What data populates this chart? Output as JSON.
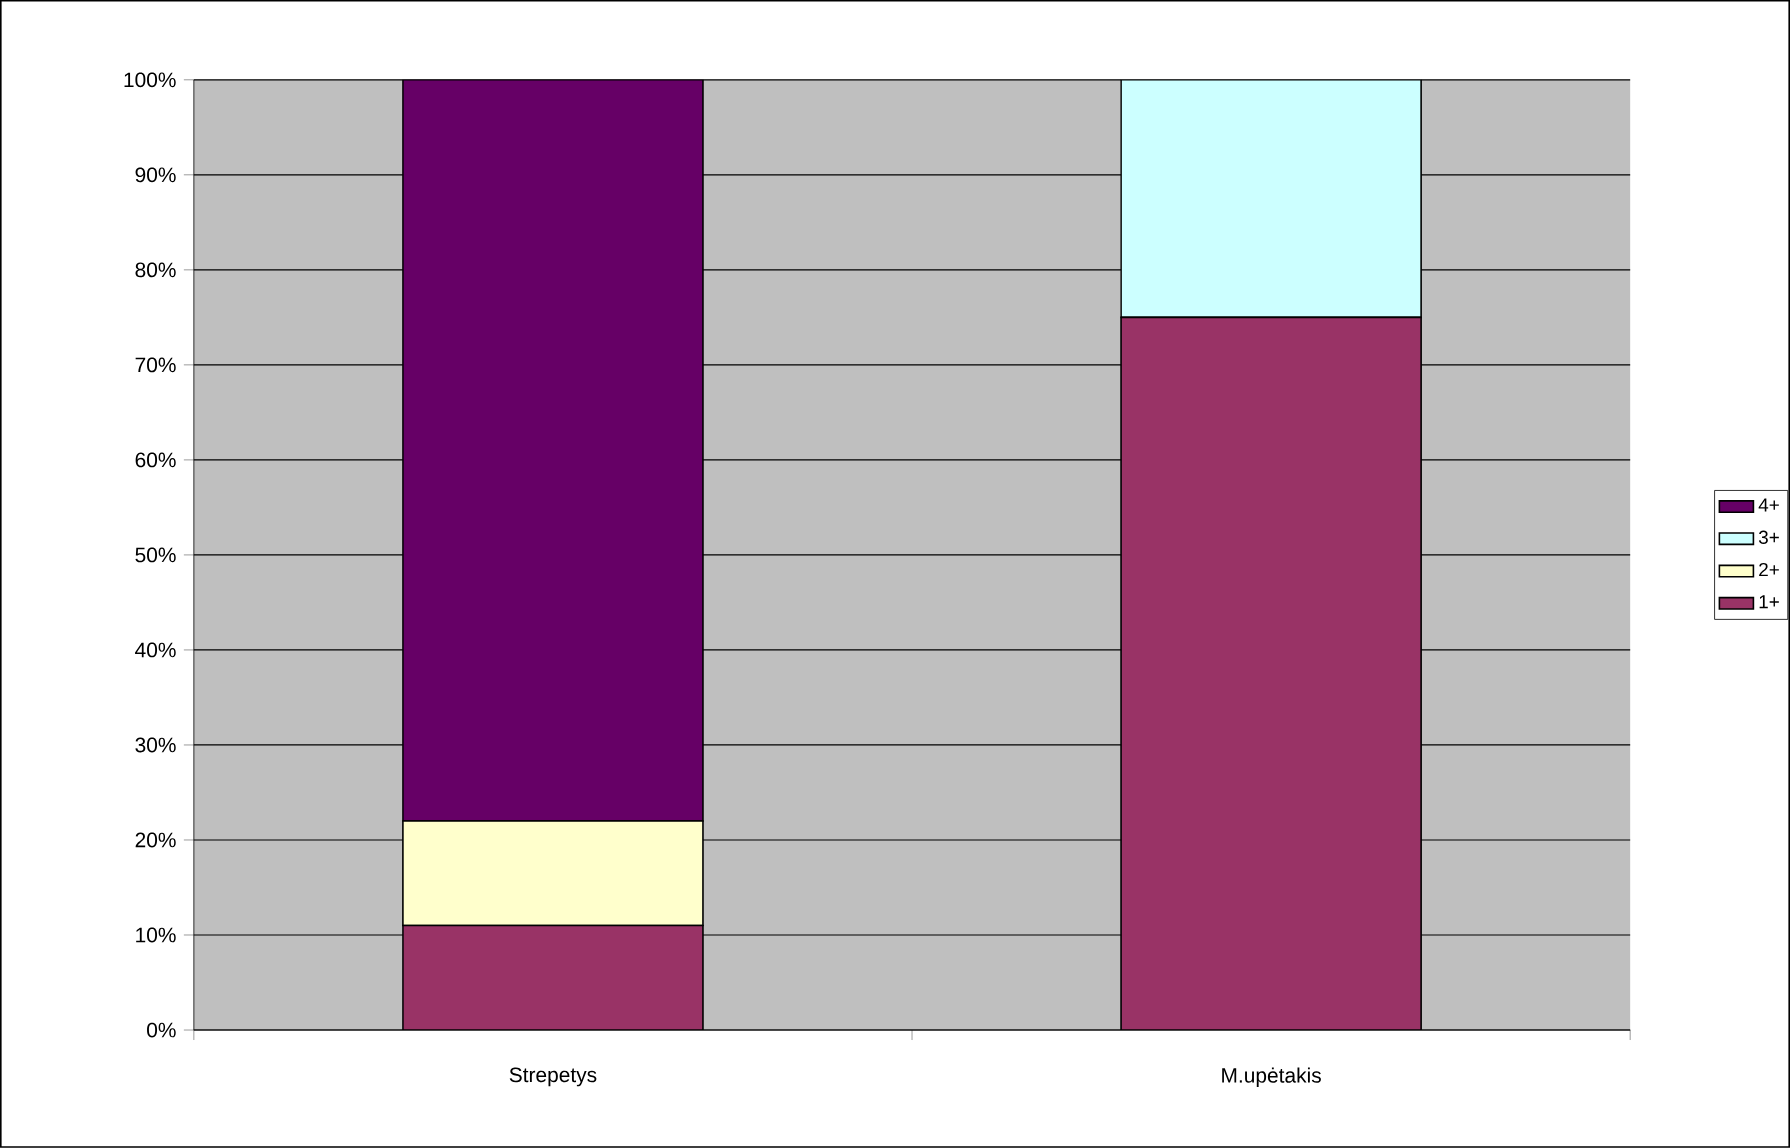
{
  "chart_data": {
    "type": "bar",
    "stacked": true,
    "categories": [
      "Strepetys",
      "M.upėtakis"
    ],
    "series": [
      {
        "name": "1+",
        "color": "#993366",
        "values": [
          11,
          75
        ]
      },
      {
        "name": "2+",
        "color": "#ffffcc",
        "values": [
          11,
          0
        ]
      },
      {
        "name": "3+",
        "color": "#ccffff",
        "values": [
          0,
          25
        ]
      },
      {
        "name": "4+",
        "color": "#660066",
        "values": [
          78,
          0
        ]
      }
    ],
    "ylim": [
      0,
      100
    ],
    "yticks": [
      {
        "value": 0,
        "label": "0%"
      },
      {
        "value": 10,
        "label": "10%"
      },
      {
        "value": 20,
        "label": "20%"
      },
      {
        "value": 30,
        "label": "30%"
      },
      {
        "value": 40,
        "label": "40%"
      },
      {
        "value": 50,
        "label": "50%"
      },
      {
        "value": 60,
        "label": "60%"
      },
      {
        "value": 70,
        "label": "70%"
      },
      {
        "value": 80,
        "label": "80%"
      },
      {
        "value": 90,
        "label": "90%"
      },
      {
        "value": 100,
        "label": "100%"
      }
    ],
    "grid": "y",
    "legend": "right"
  }
}
